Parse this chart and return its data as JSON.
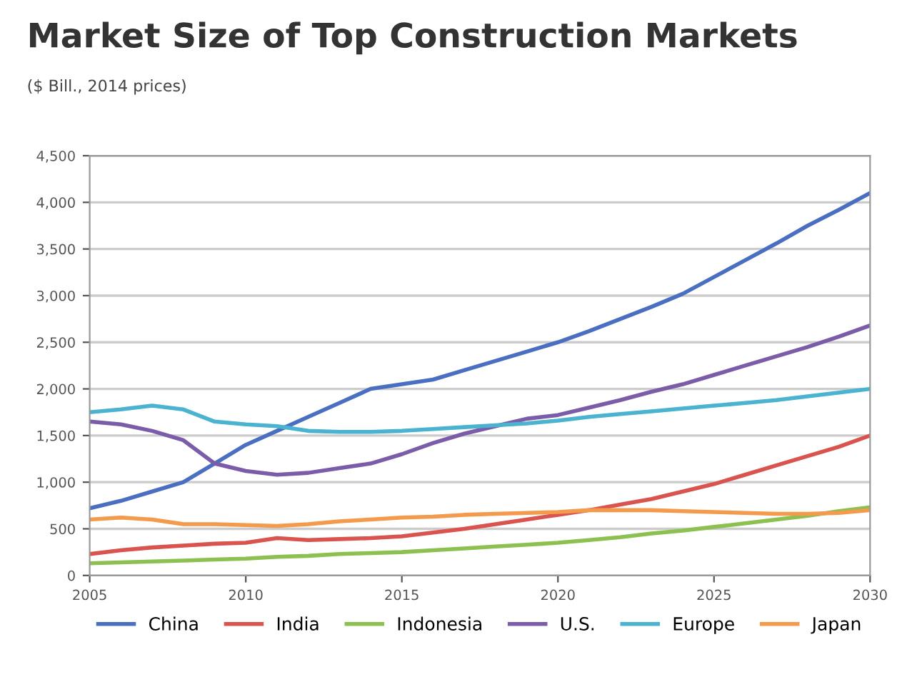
{
  "chart_data": {
    "type": "line",
    "title": "Market Size of Top Construction Markets",
    "subtitle": "($ Bill., 2014 prices)",
    "x": [
      2005,
      2006,
      2007,
      2008,
      2009,
      2010,
      2011,
      2012,
      2013,
      2014,
      2015,
      2016,
      2017,
      2018,
      2019,
      2020,
      2021,
      2022,
      2023,
      2024,
      2025,
      2026,
      2027,
      2028,
      2029,
      2030
    ],
    "series": [
      {
        "name": "China",
        "color": "#4a6fc0",
        "values": [
          720,
          800,
          900,
          1000,
          1200,
          1400,
          1550,
          1700,
          1850,
          2000,
          2050,
          2100,
          2200,
          2300,
          2400,
          2500,
          2620,
          2750,
          2880,
          3020,
          3200,
          3380,
          3560,
          3750,
          3920,
          4100
        ]
      },
      {
        "name": "India",
        "color": "#d9534f",
        "values": [
          230,
          270,
          300,
          320,
          340,
          350,
          400,
          380,
          390,
          400,
          420,
          460,
          500,
          550,
          600,
          650,
          700,
          760,
          820,
          900,
          980,
          1080,
          1180,
          1280,
          1380,
          1500
        ]
      },
      {
        "name": "Indonesia",
        "color": "#8cc152",
        "values": [
          130,
          140,
          150,
          160,
          170,
          180,
          200,
          210,
          230,
          240,
          250,
          270,
          290,
          310,
          330,
          350,
          380,
          410,
          450,
          480,
          520,
          560,
          600,
          640,
          690,
          730
        ]
      },
      {
        "name": "U.S.",
        "color": "#7a5ca8",
        "values": [
          1650,
          1620,
          1550,
          1450,
          1200,
          1120,
          1080,
          1100,
          1150,
          1200,
          1300,
          1420,
          1520,
          1600,
          1680,
          1720,
          1800,
          1880,
          1970,
          2050,
          2150,
          2250,
          2350,
          2450,
          2560,
          2680
        ]
      },
      {
        "name": "Europe",
        "color": "#4bb3cf",
        "values": [
          1750,
          1780,
          1820,
          1780,
          1650,
          1620,
          1600,
          1550,
          1540,
          1540,
          1550,
          1570,
          1590,
          1610,
          1630,
          1660,
          1700,
          1730,
          1760,
          1790,
          1820,
          1850,
          1880,
          1920,
          1960,
          2000
        ]
      },
      {
        "name": "Japan",
        "color": "#f39a4c",
        "values": [
          600,
          620,
          600,
          550,
          550,
          540,
          530,
          550,
          580,
          600,
          620,
          630,
          650,
          660,
          670,
          680,
          700,
          700,
          700,
          690,
          680,
          670,
          660,
          660,
          670,
          700
        ]
      }
    ],
    "xlim": [
      2005,
      2030
    ],
    "xticks": [
      2005,
      2010,
      2015,
      2020,
      2025,
      2030
    ],
    "ylim": [
      0,
      4500
    ],
    "yticks": [
      0,
      500,
      {
        "value": 1000,
        "label": "1,000"
      },
      {
        "value": 1500,
        "label": "1,500"
      },
      {
        "value": 2000,
        "label": "2,000"
      },
      {
        "value": 2500,
        "label": "2,500"
      },
      {
        "value": 3000,
        "label": "3,000"
      },
      {
        "value": 3500,
        "label": "3,500"
      },
      {
        "value": 4000,
        "label": "4,000"
      },
      {
        "value": 4500,
        "label": "4,500"
      }
    ],
    "grid": "y",
    "legend": "bottom",
    "marker": "none",
    "line_style": "solid"
  }
}
